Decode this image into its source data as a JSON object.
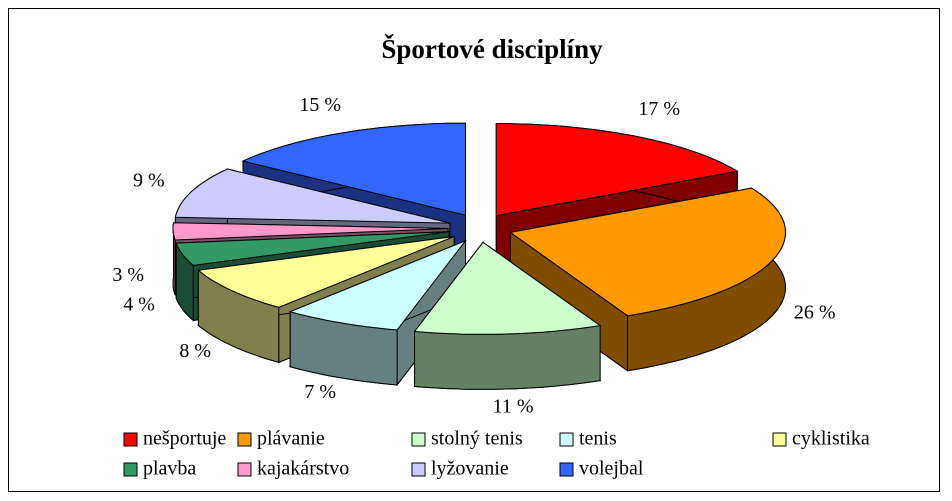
{
  "chart_data": {
    "type": "pie",
    "title": "Športové disciplíny",
    "categories": [
      "nešportuje",
      "plávanie",
      "stolný tenis",
      "tenis",
      "cyklistika",
      "plavba",
      "kajakárstvo",
      "lyžovanie",
      "volejbal"
    ],
    "values": [
      17,
      26,
      11,
      7,
      8,
      4,
      3,
      9,
      15
    ],
    "value_labels": [
      "17 %",
      "26 %",
      "11 %",
      "7 %",
      "8 %",
      "4 %",
      "3 %",
      "9 %",
      "15 %"
    ],
    "colors": [
      "#ff0000",
      "#ff9900",
      "#ccffcc",
      "#ccffff",
      "#ffff99",
      "#339966",
      "#ff99cc",
      "#ccccff",
      "#3366ff"
    ],
    "legend": "bottom"
  }
}
